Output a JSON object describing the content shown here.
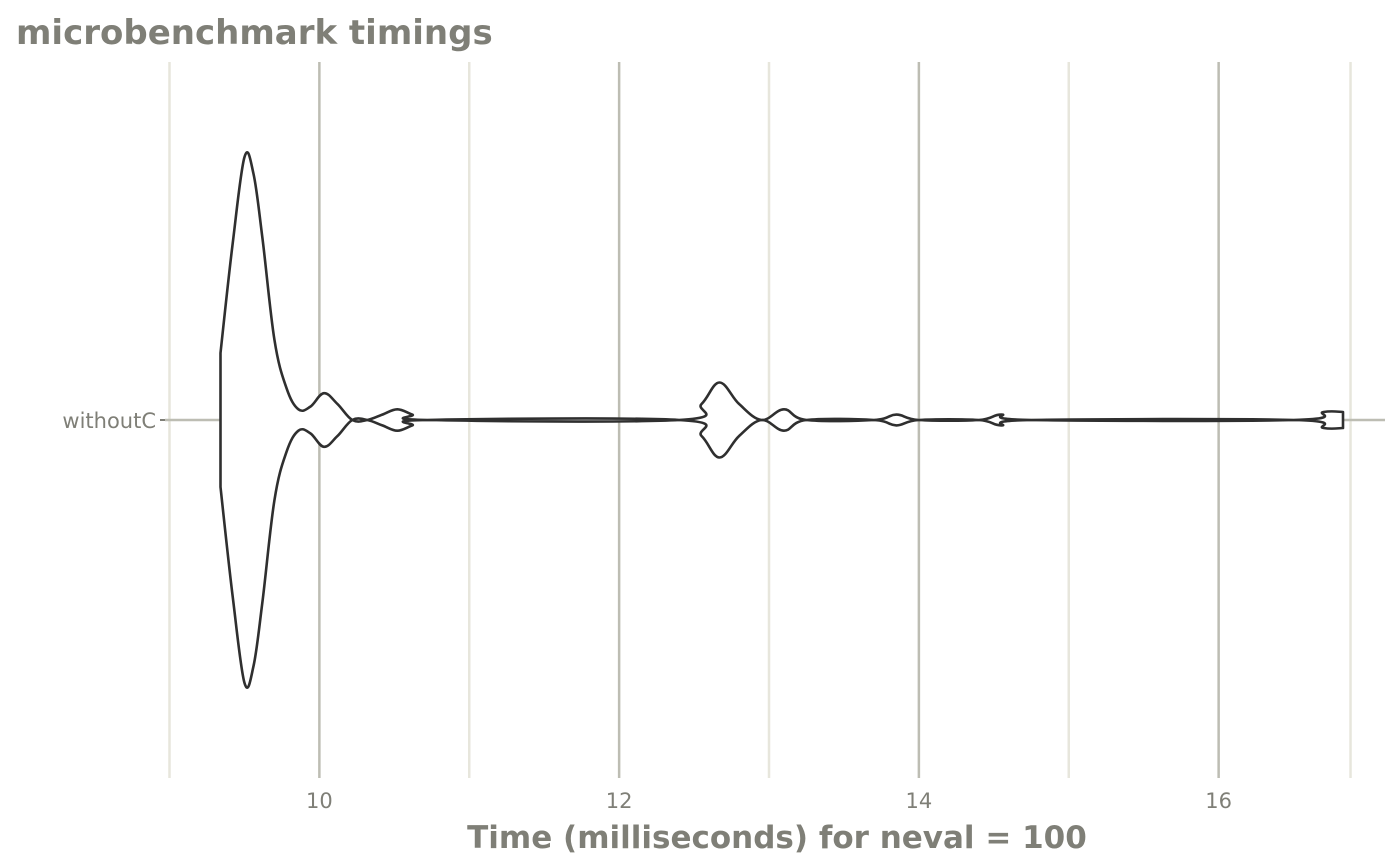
{
  "chart_data": {
    "type": "violin",
    "title": "microbenchmark timings",
    "xlabel": "Time (milliseconds) for neval = 100",
    "ylabel": "",
    "xlim": [
      8.97,
      17.11
    ],
    "x_ticks": [
      10,
      12,
      14,
      16
    ],
    "x_tick_labels": [
      "10",
      "12",
      "14",
      "16"
    ],
    "x_minor_gridlines": [
      9,
      11,
      13,
      15,
      16.88
    ],
    "grid": true,
    "orientation": "horizontal",
    "categories": [
      "withoutC"
    ],
    "series": [
      {
        "name": "withoutC",
        "range": [
          9.34,
          16.83
        ],
        "density_profile": [
          [
            9.34,
            0.25
          ],
          [
            9.42,
            0.65
          ],
          [
            9.5,
            0.98
          ],
          [
            9.56,
            0.92
          ],
          [
            9.62,
            0.68
          ],
          [
            9.7,
            0.3
          ],
          [
            9.78,
            0.12
          ],
          [
            9.86,
            0.04
          ],
          [
            9.94,
            0.05
          ],
          [
            10.03,
            0.1
          ],
          [
            10.12,
            0.06
          ],
          [
            10.22,
            0.0
          ],
          [
            10.32,
            0.0
          ],
          [
            10.42,
            0.02
          ],
          [
            10.52,
            0.04
          ],
          [
            10.62,
            0.02
          ],
          [
            10.72,
            0.0
          ],
          [
            12.4,
            0.0
          ],
          [
            12.55,
            0.06
          ],
          [
            12.67,
            0.14
          ],
          [
            12.8,
            0.06
          ],
          [
            12.95,
            0.0
          ],
          [
            13.1,
            0.04
          ],
          [
            13.25,
            0.0
          ],
          [
            13.7,
            0.0
          ],
          [
            13.85,
            0.02
          ],
          [
            14.0,
            0.0
          ],
          [
            14.4,
            0.0
          ],
          [
            14.55,
            0.02
          ],
          [
            14.75,
            0.0
          ],
          [
            16.5,
            0.0
          ],
          [
            16.7,
            0.03
          ],
          [
            16.83,
            0.03
          ]
        ]
      }
    ]
  }
}
